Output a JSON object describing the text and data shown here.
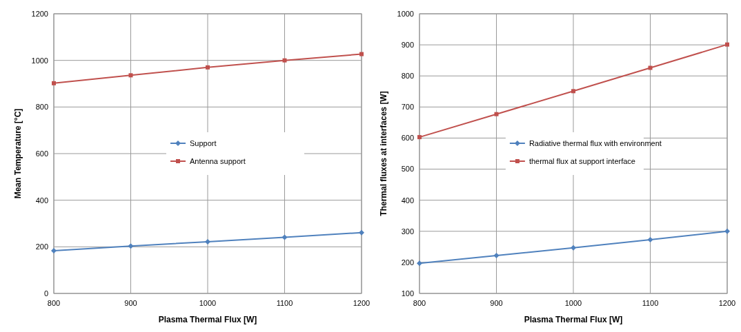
{
  "chart_data": [
    {
      "type": "line",
      "xlabel": "Plasma Thermal Flux [W]",
      "ylabel": "Mean Temperature [°C]",
      "x": [
        800,
        900,
        1000,
        1100,
        1200
      ],
      "xlim": [
        800,
        1200
      ],
      "xticks": [
        800,
        900,
        1000,
        1100,
        1200
      ],
      "ylim": [
        0,
        1200
      ],
      "yticks": [
        0,
        200,
        400,
        600,
        800,
        1000,
        1200
      ],
      "grid": true,
      "legend": "center",
      "series": [
        {
          "name": "Support",
          "color": "#4f81bd",
          "marker": "diamond",
          "values": [
            183,
            203,
            222,
            241,
            261
          ]
        },
        {
          "name": "Antenna support",
          "color": "#c0504d",
          "marker": "square",
          "values": [
            902,
            936,
            970,
            1000,
            1027
          ]
        }
      ]
    },
    {
      "type": "line",
      "xlabel": "Plasma Thermal Flux [W]",
      "ylabel": "Thermal fluxes at interfaces [W]",
      "x": [
        800,
        900,
        1000,
        1100,
        1200
      ],
      "xlim": [
        800,
        1200
      ],
      "xticks": [
        800,
        900,
        1000,
        1100,
        1200
      ],
      "ylim": [
        100,
        1000
      ],
      "yticks": [
        100,
        200,
        300,
        400,
        500,
        600,
        700,
        800,
        900,
        1000
      ],
      "grid": true,
      "legend": "center left",
      "series": [
        {
          "name": "Radiative thermal flux with environment",
          "color": "#4f81bd",
          "marker": "diamond",
          "values": [
            197,
            222,
            247,
            273,
            300
          ]
        },
        {
          "name": "thermal flux at support interface",
          "color": "#c0504d",
          "marker": "square",
          "values": [
            603,
            677,
            751,
            826,
            901
          ]
        }
      ]
    }
  ]
}
